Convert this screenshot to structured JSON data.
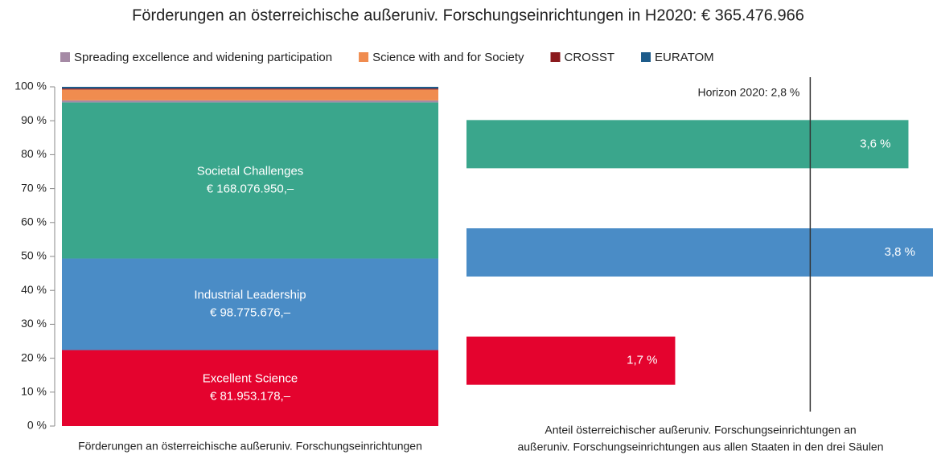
{
  "chart_data": [
    {
      "type": "stacked_bar",
      "title": "Förderungen an österreichische außeruniv. Forschungseinrichtungen in H2020: € 365.476.966",
      "x_label": "Förderungen an österreichische außeruniv. Forschungseinrichtungen",
      "ylim": [
        0,
        100
      ],
      "yticks": [
        {
          "value": 0,
          "label": "0 %"
        },
        {
          "value": 10,
          "label": "10 %"
        },
        {
          "value": 20,
          "label": "20 %"
        },
        {
          "value": 30,
          "label": "30 %"
        },
        {
          "value": 40,
          "label": "40 %"
        },
        {
          "value": 50,
          "label": "50 %"
        },
        {
          "value": 60,
          "label": "60 %"
        },
        {
          "value": 70,
          "label": "70 %"
        },
        {
          "value": 80,
          "label": "80 %"
        },
        {
          "value": 90,
          "label": "90 %"
        },
        {
          "value": 100,
          "label": "100 %"
        }
      ],
      "series": [
        {
          "name": "Excellent Science",
          "amount": "€ 81.953.178,–",
          "color": "#e4032e",
          "values": [
            22.4
          ]
        },
        {
          "name": "Industrial Leadership",
          "amount": "€ 98.775.676,–",
          "color": "#4a8cc6",
          "values": [
            27.0
          ]
        },
        {
          "name": "Societal Challenges",
          "amount": "€ 168.076.950,–",
          "color": "#3aa68c",
          "values": [
            46.0
          ]
        },
        {
          "name": "Spreading excellence and widening participation",
          "color": "#a58aa5",
          "values": [
            0.6
          ]
        },
        {
          "name": "Science with and for Society",
          "color": "#f08c4f",
          "values": [
            3.2
          ]
        },
        {
          "name": "CROSST",
          "color": "#8b1a1d",
          "values": [
            0.3
          ]
        },
        {
          "name": "EURATOM",
          "color": "#1d5b8a",
          "values": [
            0.5
          ]
        }
      ]
    },
    {
      "type": "hbar",
      "x_label": [
        "Anteil österreichischer außeruniv. Forschungseinrichtungen an",
        "außeruniv. Forschungseinrichtungen aus allen Staaten in den drei Säulen"
      ],
      "xlim": [
        0,
        3.8
      ],
      "values": [
        3.6,
        3.8,
        1.7
      ],
      "value_labels": [
        "3,6 %",
        "3,8 %",
        "1,7 %"
      ],
      "colors": [
        "#3aa68c",
        "#4a8cc6",
        "#e4032e"
      ],
      "reference": {
        "value": 2.8,
        "label": "Horizon 2020: 2,8 %"
      }
    }
  ]
}
